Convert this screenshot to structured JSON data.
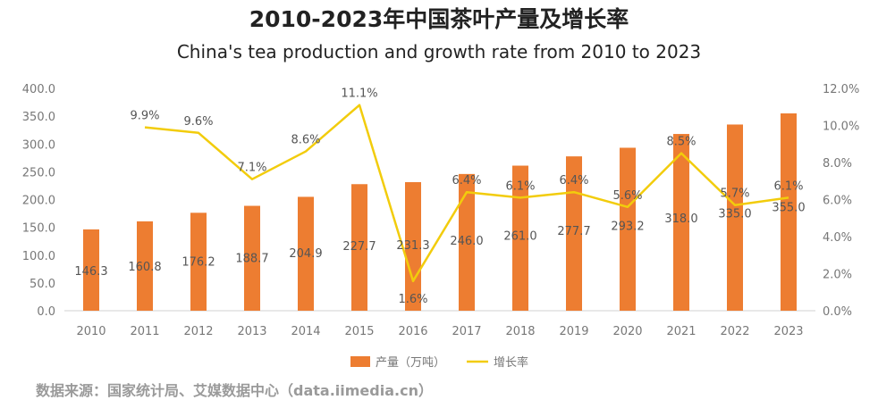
{
  "title": "2010-2023年中国茶叶产量及增长率",
  "subtitle": "China's tea production and growth rate from 2010 to 2023",
  "source": "数据来源：国家统计局、艾媒数据中心（data.iimedia.cn）",
  "colors": {
    "bar": "#ed7d31",
    "line": "#f2cc0c"
  },
  "chart_data": {
    "type": "bar",
    "categories": [
      "2010",
      "2011",
      "2012",
      "2013",
      "2014",
      "2015",
      "2016",
      "2017",
      "2018",
      "2019",
      "2020",
      "2021",
      "2022",
      "2023"
    ],
    "series": [
      {
        "name": "产量（万吨）",
        "type": "bar",
        "axis": "left",
        "values": [
          146.3,
          160.8,
          176.2,
          188.7,
          204.9,
          227.7,
          231.3,
          246.0,
          261.0,
          277.7,
          293.2,
          318.0,
          335.0,
          355.0
        ],
        "labels": [
          "146.3",
          "160.8",
          "176.2",
          "188.7",
          "204.9",
          "227.7",
          "231.3",
          "246.0",
          "261.0",
          "277.7",
          "293.2",
          "318.0",
          "335.0",
          "355.0"
        ]
      },
      {
        "name": "增长率",
        "type": "line",
        "axis": "right",
        "values": [
          null,
          9.9,
          9.6,
          7.1,
          8.6,
          11.1,
          1.6,
          6.4,
          6.1,
          6.4,
          5.6,
          8.5,
          5.7,
          6.1
        ],
        "labels": [
          "",
          "9.9%",
          "9.6%",
          "7.1%",
          "8.6%",
          "11.1%",
          "1.6%",
          "6.4%",
          "6.1%",
          "6.4%",
          "5.6%",
          "8.5%",
          "5.7%",
          "6.1%"
        ]
      }
    ],
    "y_left": {
      "min": 0,
      "max": 400,
      "ticks": [
        "0.0",
        "50.0",
        "100.0",
        "150.0",
        "200.0",
        "250.0",
        "300.0",
        "350.0",
        "400.0"
      ]
    },
    "y_right": {
      "min": 0,
      "max": 12,
      "ticks": [
        "0.0%",
        "2.0%",
        "4.0%",
        "6.0%",
        "8.0%",
        "10.0%",
        "12.0%"
      ]
    },
    "grid": false,
    "legend_position": "bottom"
  }
}
